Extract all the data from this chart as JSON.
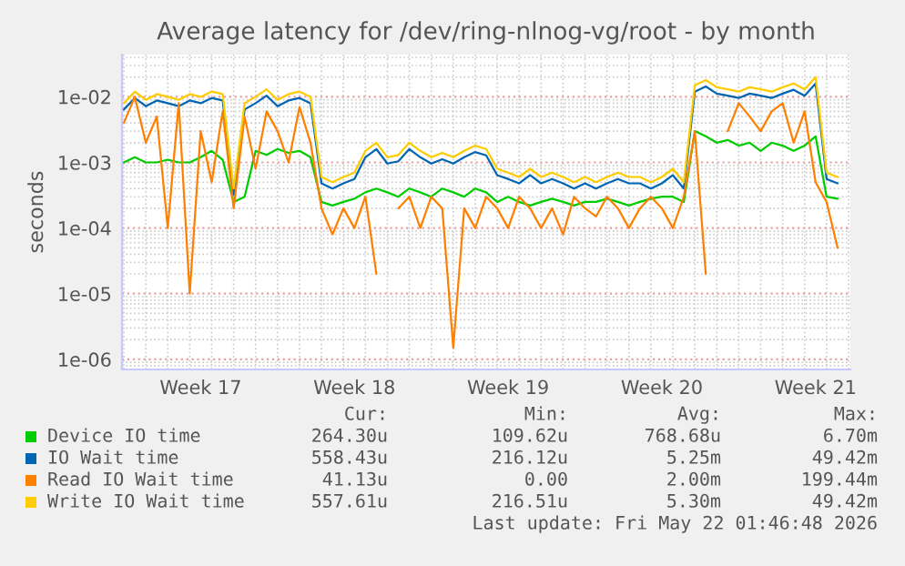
{
  "chart_data": {
    "type": "line",
    "title": "Average latency for /dev/ring-nlnog-vg/root - by month",
    "ylabel": "seconds",
    "x": [
      "2026-04-20T00:00",
      "2026-04-20T12:00",
      "2026-04-21T00:00",
      "2026-04-21T12:00",
      "2026-04-22T00:00",
      "2026-04-22T12:00",
      "2026-04-23T00:00",
      "2026-04-23T12:00",
      "2026-04-24T00:00",
      "2026-04-24T12:00",
      "2026-04-25T00:00",
      "2026-04-25T12:00",
      "2026-04-26T00:00",
      "2026-04-26T12:00",
      "2026-04-27T00:00",
      "2026-04-27T12:00",
      "2026-04-28T00:00",
      "2026-04-28T12:00",
      "2026-04-29T00:00",
      "2026-04-29T12:00",
      "2026-04-30T00:00",
      "2026-04-30T12:00",
      "2026-05-01T00:00",
      "2026-05-01T12:00",
      "2026-05-02T00:00",
      "2026-05-02T12:00",
      "2026-05-03T00:00",
      "2026-05-03T12:00",
      "2026-05-04T00:00",
      "2026-05-04T12:00",
      "2026-05-05T00:00",
      "2026-05-05T12:00",
      "2026-05-06T00:00",
      "2026-05-06T12:00",
      "2026-05-07T00:00",
      "2026-05-07T12:00",
      "2026-05-08T00:00",
      "2026-05-08T12:00",
      "2026-05-09T00:00",
      "2026-05-09T12:00",
      "2026-05-10T00:00",
      "2026-05-10T12:00",
      "2026-05-11T00:00",
      "2026-05-11T12:00",
      "2026-05-12T00:00",
      "2026-05-12T12:00",
      "2026-05-13T00:00",
      "2026-05-13T12:00",
      "2026-05-14T00:00",
      "2026-05-14T12:00",
      "2026-05-15T00:00",
      "2026-05-15T12:00",
      "2026-05-16T00:00",
      "2026-05-16T12:00",
      "2026-05-17T00:00",
      "2026-05-17T12:00",
      "2026-05-18T00:00",
      "2026-05-18T12:00",
      "2026-05-19T00:00",
      "2026-05-19T12:00",
      "2026-05-20T00:00",
      "2026-05-20T12:00",
      "2026-05-21T00:00",
      "2026-05-21T12:00",
      "2026-05-22T00:00",
      "2026-05-22T12:00"
    ],
    "series": [
      {
        "name": "Device IO time",
        "color": "#00cc00",
        "values": [
          0.001,
          0.0012,
          0.001,
          0.001,
          0.0011,
          0.001,
          0.001,
          0.0012,
          0.0015,
          0.0011,
          0.00025,
          0.0003,
          0.0015,
          0.0013,
          0.0016,
          0.0014,
          0.0015,
          0.0012,
          0.00025,
          0.00022,
          0.00025,
          0.00028,
          0.00035,
          0.0004,
          0.00035,
          0.0003,
          0.0004,
          0.00035,
          0.0003,
          0.0004,
          0.00035,
          0.0003,
          0.0004,
          0.00035,
          0.00025,
          0.0003,
          0.00025,
          0.00022,
          0.00025,
          0.00028,
          0.00025,
          0.00022,
          0.00025,
          0.00025,
          0.00028,
          0.00025,
          0.00022,
          0.00025,
          0.00028,
          0.0003,
          0.0003,
          0.00025,
          0.003,
          0.0025,
          0.002,
          0.0022,
          0.0018,
          0.002,
          0.0015,
          0.002,
          0.0018,
          0.0015,
          0.0018,
          0.0025,
          0.0003,
          0.00028
        ]
      },
      {
        "name": "IO Wait time",
        "color": "#0066b3",
        "values": [
          0.0064,
          0.0096,
          0.0072,
          0.0088,
          0.008,
          0.0072,
          0.0088,
          0.008,
          0.0096,
          0.0088,
          0.00032,
          0.0064,
          0.008,
          0.0104,
          0.0072,
          0.0088,
          0.0096,
          0.008,
          0.00048,
          0.0004,
          0.00048,
          0.00056,
          0.0012,
          0.0016,
          0.00096,
          0.00104,
          0.0016,
          0.0012,
          0.00096,
          0.00112,
          0.00096,
          0.0012,
          0.00144,
          0.00128,
          0.00064,
          0.00056,
          0.00048,
          0.00064,
          0.00048,
          0.00056,
          0.00048,
          0.0004,
          0.00048,
          0.0004,
          0.00048,
          0.00056,
          0.00048,
          0.00048,
          0.0004,
          0.00048,
          0.00064,
          0.0004,
          0.012,
          0.0144,
          0.0112,
          0.0104,
          0.0096,
          0.0112,
          0.0104,
          0.0096,
          0.0112,
          0.0128,
          0.0104,
          0.016,
          0.00056,
          0.00048
        ]
      },
      {
        "name": "Read IO Wait time",
        "color": "#ff8000",
        "values": [
          0.004,
          0.01,
          0.002,
          0.005,
          0.0001,
          0.008,
          1e-05,
          0.003,
          0.0005,
          0.006,
          0.0002,
          0.005,
          0.0008,
          0.006,
          0.003,
          0.001,
          0.007,
          0.002,
          0.0002,
          8e-05,
          0.0002,
          0.0001,
          0.0003,
          2e-05,
          null,
          0.0002,
          0.0003,
          0.0001,
          0.0003,
          0.0002,
          1.5e-06,
          0.0002,
          0.0001,
          0.0003,
          0.0002,
          0.0001,
          0.0003,
          0.0002,
          0.0001,
          0.0002,
          8e-05,
          0.0003,
          0.0002,
          0.00015,
          0.0003,
          0.0002,
          0.0001,
          0.0002,
          0.0003,
          0.0002,
          0.0001,
          0.0003,
          0.003,
          2e-05,
          null,
          0.003,
          0.008,
          0.005,
          0.003,
          0.006,
          0.008,
          0.002,
          0.006,
          0.0005,
          0.00025,
          5e-05
        ]
      },
      {
        "name": "Write IO Wait time",
        "color": "#ffcc00",
        "values": [
          0.008,
          0.012,
          0.009,
          0.011,
          0.01,
          0.009,
          0.011,
          0.01,
          0.012,
          0.011,
          0.0004,
          0.008,
          0.01,
          0.013,
          0.009,
          0.011,
          0.012,
          0.01,
          0.0006,
          0.0005,
          0.0006,
          0.0007,
          0.0015,
          0.002,
          0.0012,
          0.0013,
          0.002,
          0.0015,
          0.0012,
          0.0014,
          0.0012,
          0.0015,
          0.0018,
          0.0016,
          0.0008,
          0.0007,
          0.0006,
          0.0008,
          0.0006,
          0.0007,
          0.0006,
          0.0005,
          0.0006,
          0.0005,
          0.0006,
          0.0007,
          0.0006,
          0.0006,
          0.0005,
          0.0006,
          0.0008,
          0.0005,
          0.015,
          0.018,
          0.014,
          0.013,
          0.012,
          0.014,
          0.013,
          0.012,
          0.014,
          0.016,
          0.013,
          0.02,
          0.0007,
          0.0006
        ]
      }
    ],
    "log": true,
    "ylim": [
      7e-07,
      0.044
    ],
    "yticks": [
      {
        "value": 1e-06,
        "label": "1e-06"
      },
      {
        "value": 1e-05,
        "label": "1e-05"
      },
      {
        "value": 0.0001,
        "label": "1e-04"
      },
      {
        "value": 0.001,
        "label": "1e-03"
      },
      {
        "value": 0.01,
        "label": "1e-02"
      }
    ],
    "xlim": [
      "2026-04-19T22:00",
      "2026-05-23T02:00"
    ],
    "xticks": [
      {
        "value": "2026-04-23T12:00",
        "label": "Week 17"
      },
      {
        "value": "2026-04-30T12:00",
        "label": "Week 18"
      },
      {
        "value": "2026-05-07T12:00",
        "label": "Week 19"
      },
      {
        "value": "2026-05-14T12:00",
        "label": "Week 20"
      },
      {
        "value": "2026-05-21T12:00",
        "label": "Week 21"
      }
    ],
    "grid": true,
    "legend": "bottom left",
    "line_style": "solid",
    "annotations": [
      "Cur:",
      "Min:",
      "Avg:",
      "Max:",
      "264.30u",
      "109.62u",
      "768.68u",
      "6.70m",
      "558.43u",
      "216.12u",
      "5.25m",
      "49.42m",
      "41.13u",
      "0.00",
      "2.00m",
      "199.44m",
      "557.61u",
      "216.51u",
      "5.30m",
      "49.42m",
      "Last update: Fri May 22 01:46:48 2026"
    ]
  }
}
